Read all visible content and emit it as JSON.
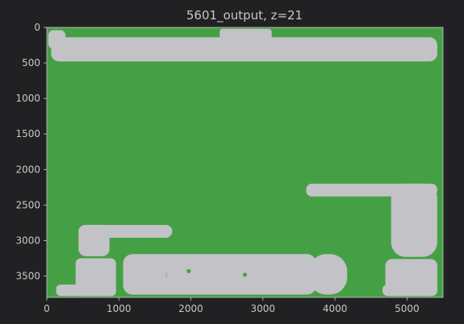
{
  "chart_data": {
    "type": "heatmap",
    "title": "5601_output, z=21",
    "xlabel": "",
    "ylabel": "",
    "xlim": [
      0,
      5500
    ],
    "ylim": [
      3800,
      0
    ],
    "x_ticks": [
      0,
      1000,
      2000,
      3000,
      4000,
      5000
    ],
    "y_ticks": [
      0,
      500,
      1000,
      1500,
      2000,
      2500,
      3000,
      3500
    ],
    "grid": false,
    "colors": {
      "background_region": "#45a045",
      "object_region": "#c3c3c7",
      "axis": "#c7c7c7",
      "figure_bg": "#212123"
    },
    "regions": [
      {
        "label": "top-band",
        "x": [
          60,
          5420
        ],
        "y": [
          140,
          480
        ],
        "r": 110
      },
      {
        "label": "top-band-left-nub",
        "x": [
          20,
          260
        ],
        "y": [
          40,
          300
        ],
        "r": 70
      },
      {
        "label": "top-band-center-tab",
        "x": [
          2400,
          3120
        ],
        "y": [
          20,
          200
        ],
        "r": 40
      },
      {
        "label": "right-bar",
        "x": [
          3600,
          5420
        ],
        "y": [
          2200,
          2380
        ],
        "r": 80
      },
      {
        "label": "right-column",
        "x": [
          4780,
          5420
        ],
        "y": [
          2200,
          3230
        ],
        "r": 200
      },
      {
        "label": "left-block-upper",
        "x": [
          440,
          870
        ],
        "y": [
          2780,
          3220
        ],
        "r": 100
      },
      {
        "label": "left-bar",
        "x": [
          440,
          1740
        ],
        "y": [
          2780,
          2960
        ],
        "r": 90
      },
      {
        "label": "bottom-main",
        "x": [
          1060,
          3740
        ],
        "y": [
          3190,
          3760
        ],
        "r": 130
      },
      {
        "label": "bottom-left-block",
        "x": [
          400,
          960
        ],
        "y": [
          3250,
          3780
        ],
        "r": 70
      },
      {
        "label": "bottom-left-strip",
        "x": [
          130,
          960
        ],
        "y": [
          3620,
          3780
        ],
        "r": 60
      },
      {
        "label": "bottom-round-right",
        "x": [
          3640,
          4170
        ],
        "y": [
          3190,
          3760
        ],
        "r": 240
      },
      {
        "label": "bottom-right-block",
        "x": [
          4700,
          5420
        ],
        "y": [
          3260,
          3780
        ],
        "r": 90
      },
      {
        "label": "bottom-right-strip",
        "x": [
          4660,
          5420
        ],
        "y": [
          3620,
          3780
        ],
        "r": 70
      }
    ],
    "markers": [
      {
        "label": "dot-1",
        "x": 1970,
        "y": 3430,
        "color": "#45a045"
      },
      {
        "label": "dot-2",
        "x": 2750,
        "y": 3480,
        "color": "#45a045"
      },
      {
        "label": "arc-1",
        "x": 1640,
        "y": 3480,
        "color": "#8fa0d8"
      }
    ]
  }
}
